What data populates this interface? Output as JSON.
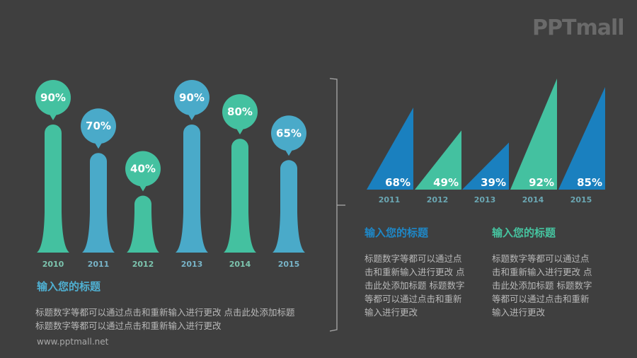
{
  "logo": "PPTmall",
  "colors": {
    "background": "#3f3f3f",
    "green": "#44c1a0",
    "light_blue": "#4aaac9",
    "dark_blue": "#1a80bf",
    "year_green": "#7cc4ae",
    "year_blue": "#78b4c8",
    "year_teal": "#6aa6b2",
    "title_light_blue": "#4fb0d2",
    "title_dark_blue": "#1e88c8",
    "title_green": "#46c4a0"
  },
  "chart_data": [
    {
      "type": "bar",
      "title": "",
      "categories": [
        "2010",
        "2011",
        "2012",
        "2013",
        "2014",
        "2015"
      ],
      "values": [
        90,
        70,
        40,
        90,
        80,
        65
      ],
      "labels": [
        "90%",
        "70%",
        "40%",
        "90%",
        "80%",
        "65%"
      ],
      "colors": [
        "green",
        "light_blue",
        "green",
        "light_blue",
        "green",
        "light_blue"
      ],
      "xlabel": "",
      "ylabel": "",
      "grid": false,
      "legend": "none"
    },
    {
      "type": "bar",
      "style": "triangle",
      "title": "",
      "categories": [
        "2011",
        "2012",
        "2013",
        "2014",
        "2015"
      ],
      "values": [
        68,
        49,
        39,
        92,
        85
      ],
      "labels": [
        "68%",
        "49%",
        "39%",
        "92%",
        "85%"
      ],
      "colors": [
        "dark_blue",
        "green",
        "dark_blue",
        "green",
        "dark_blue"
      ],
      "xlabel": "",
      "ylabel": "",
      "grid": false,
      "legend": "none"
    }
  ],
  "left_panel": {
    "title": "输入您的标题",
    "body_lines": [
      "标题数字等都可以通过点击和重新输入进行更改 点击此处添加标题",
      "标题数字等都可以通过点击和重新输入进行更改"
    ]
  },
  "right_panels": [
    {
      "title": "输入您的标题",
      "body_lines": [
        "标题数字等都可以通过点",
        "击和重新输入进行更改 点",
        "击此处添加标题 标题数字",
        "等都可以通过点击和重新",
        "输入进行更改"
      ]
    },
    {
      "title": "输入您的标题",
      "body_lines": [
        "标题数字等都可以通过点",
        "击和重新输入进行更改 点",
        "击此处添加标题 标题数字",
        "等都可以通过点击和重新",
        "输入进行更改"
      ]
    }
  ],
  "footer": "www.pptmall.net"
}
